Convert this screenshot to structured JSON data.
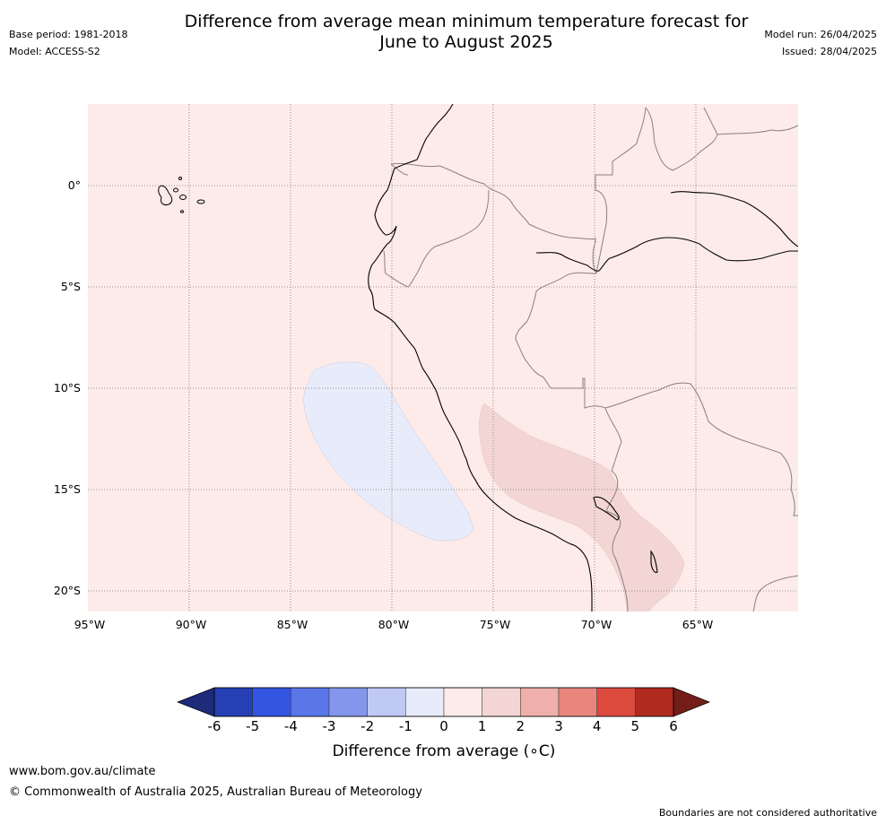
{
  "header": {
    "title_line1": "Difference from average mean minimum temperature forecast for",
    "title_line2": "June to August 2025",
    "base_period": "Base period: 1981-2018",
    "model": "Model: ACCESS-S2",
    "model_run": "Model run: 26/04/2025",
    "issued": "Issued: 28/04/2025"
  },
  "map": {
    "lat_labels": [
      "0°",
      "5°S",
      "10°S",
      "15°S",
      "20°S"
    ],
    "lon_labels": [
      "95°W",
      "90°W",
      "85°W",
      "80°W",
      "75°W",
      "70°W",
      "65°W"
    ],
    "background_color": "#fcebe9",
    "negative_anomaly_color": "#e8ecfa",
    "positive_anomaly_color": "#f3d6d3"
  },
  "colorbar": {
    "ticks": [
      "-6",
      "-5",
      "-4",
      "-3",
      "-2",
      "-1",
      "0",
      "1",
      "2",
      "3",
      "4",
      "5",
      "6"
    ],
    "colors": [
      "#1e2a7a",
      "#2540b4",
      "#3355e0",
      "#5b76e8",
      "#8496ec",
      "#c0c8f4",
      "#e8ecfa",
      "#fcebe9",
      "#f3d6d3",
      "#efafaa",
      "#e8867e",
      "#dc4a3e",
      "#b02a20",
      "#731e18"
    ],
    "label": "Difference from average (∘C)"
  },
  "footer": {
    "url": "www.bom.gov.au/climate",
    "copyright": "© Commonwealth of Australia 2025, Australian Bureau of Meteorology",
    "disclaimer": "Boundaries are not considered authoritative"
  }
}
